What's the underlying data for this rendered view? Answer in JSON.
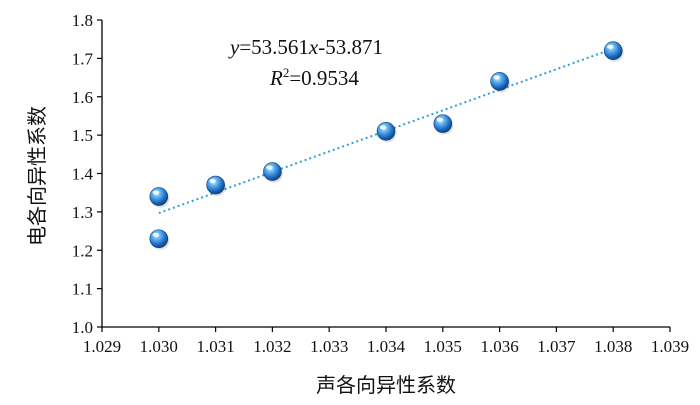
{
  "chart_data": {
    "type": "scatter",
    "xlabel": "声各向异性系数",
    "ylabel": "电各向异性系数",
    "xlim": [
      1.029,
      1.039
    ],
    "ylim": [
      1.0,
      1.8
    ],
    "x_ticks": [
      "1.029",
      "1.030",
      "1.031",
      "1.032",
      "1.033",
      "1.034",
      "1.035",
      "1.036",
      "1.037",
      "1.038",
      "1.039"
    ],
    "y_ticks": [
      "1.0",
      "1.1",
      "1.2",
      "1.3",
      "1.4",
      "1.5",
      "1.6",
      "1.7",
      "1.8"
    ],
    "grid": false,
    "points": [
      {
        "x": 1.03,
        "y": 1.34
      },
      {
        "x": 1.03,
        "y": 1.23
      },
      {
        "x": 1.031,
        "y": 1.37
      },
      {
        "x": 1.032,
        "y": 1.405
      },
      {
        "x": 1.034,
        "y": 1.51
      },
      {
        "x": 1.035,
        "y": 1.53
      },
      {
        "x": 1.036,
        "y": 1.64
      },
      {
        "x": 1.038,
        "y": 1.72
      }
    ],
    "trendline": {
      "slope": 53.561,
      "intercept": -53.871,
      "x_range": [
        1.03,
        1.038
      ],
      "color": "#2f9fd8"
    },
    "equation": {
      "y": "y",
      "eq_mid": "=53.561",
      "x": "x",
      "eq_end": "-53.871",
      "r": "R",
      "sup": "2",
      "r_value": "=0.9534"
    },
    "marker_color": "#1f6fc4"
  }
}
